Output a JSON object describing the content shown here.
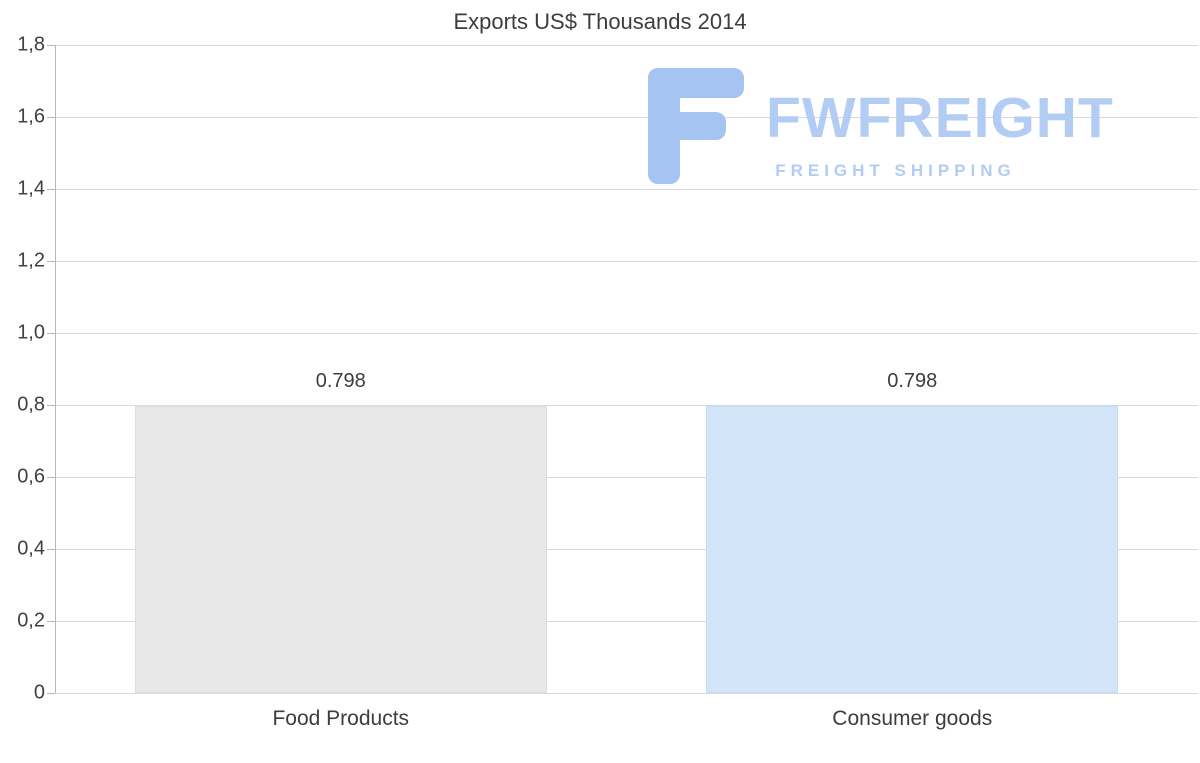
{
  "chart_data": {
    "type": "bar",
    "title": "Exports US$ Thousands 2014",
    "categories": [
      "Food Products",
      "Consumer goods"
    ],
    "values": [
      0.798,
      0.798
    ],
    "value_labels": [
      "0.798",
      "0.798"
    ],
    "series": [
      {
        "name": "Exports",
        "values": [
          0.798,
          0.798
        ]
      }
    ],
    "bar_fill_colors": [
      "#e7e7e7",
      "#d3e5f9"
    ],
    "bar_border_colors": [
      "#dedede",
      "#c6dcf5"
    ],
    "ylim": [
      0,
      1.8
    ],
    "ytick_step": 0.2,
    "ytick_labels": [
      "0",
      "0,2",
      "0,4",
      "0,6",
      "0,8",
      "1,0",
      "1,2",
      "1,4",
      "1,6",
      "1,8"
    ],
    "grid": true,
    "legend": "none",
    "xlabel": "",
    "ylabel": ""
  },
  "watermark": {
    "brand": "FWFREIGHT",
    "tagline": "FREIGHT SHIPPING",
    "text_color": "#b3ccf3",
    "icon_color": "#a6c4f1"
  }
}
